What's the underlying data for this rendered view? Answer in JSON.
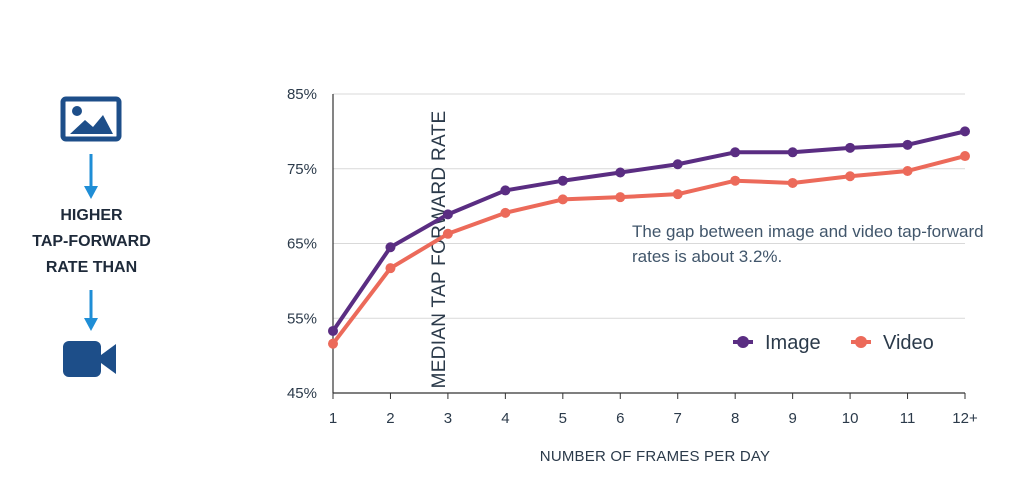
{
  "left_panel": {
    "caption_lines": [
      "HIGHER",
      "TAP-FORWARD",
      "RATE THAN"
    ],
    "icons": [
      "image-icon",
      "arrow-down-icon",
      "arrow-down-icon",
      "video-camera-icon"
    ],
    "icon_color": "#1d4e89",
    "arrow_color": "#1f8ed6"
  },
  "annotation": "The gap between image and video tap-forward rates is about 3.2%.",
  "chart_data": {
    "type": "line",
    "categories": [
      "1",
      "2",
      "3",
      "4",
      "5",
      "6",
      "7",
      "8",
      "9",
      "10",
      "11",
      "12+"
    ],
    "series": [
      {
        "name": "Image",
        "color": "#5a2d82",
        "values": [
          53.3,
          64.5,
          68.9,
          72.1,
          73.4,
          74.5,
          75.6,
          77.2,
          77.2,
          77.8,
          78.2,
          80.0
        ]
      },
      {
        "name": "Video",
        "color": "#ec6a5a",
        "values": [
          51.6,
          61.7,
          66.3,
          69.1,
          70.9,
          71.2,
          71.6,
          73.4,
          73.1,
          74.0,
          74.7,
          76.7
        ]
      }
    ],
    "xlabel": "NUMBER OF FRAMES PER DAY",
    "ylabel": "MEDIAN TAP FORWARD RATE",
    "ylim": [
      45,
      85
    ],
    "yticks": [
      45,
      55,
      65,
      75,
      85
    ],
    "ytick_labels": [
      "45%",
      "55%",
      "65%",
      "75%",
      "85%"
    ],
    "grid": "horizontal",
    "legend": "bottom-right"
  }
}
